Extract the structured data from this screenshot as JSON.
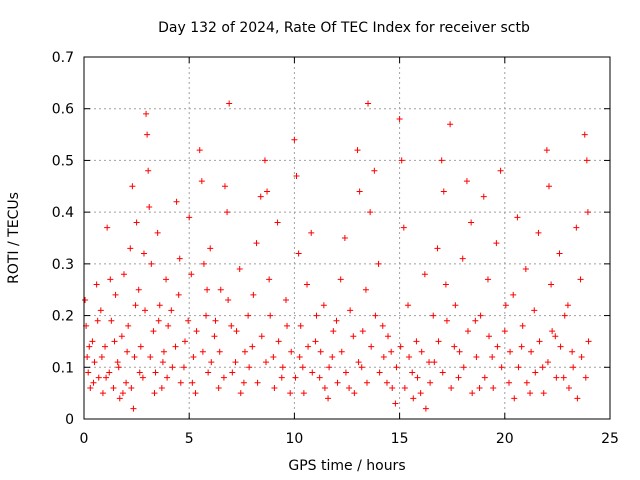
{
  "chart_data": {
    "type": "scatter",
    "title": "Day 132 of 2024, Rate Of TEC Index for receiver sctb",
    "xlabel": "GPS time / hours",
    "ylabel": "ROTI / TECUs",
    "xlim": [
      0,
      25
    ],
    "ylim": [
      0,
      0.7
    ],
    "xticks": [
      "0",
      "5",
      "10",
      "15",
      "20",
      "25"
    ],
    "yticks": [
      "0",
      "0.1",
      "0.2",
      "0.3",
      "0.4",
      "0.5",
      "0.6",
      "0.7"
    ],
    "grid": true,
    "marker": "+",
    "color": "#ff0000",
    "series": [
      {
        "points": [
          [
            0.05,
            0.23
          ],
          [
            0.1,
            0.18
          ],
          [
            0.15,
            0.12
          ],
          [
            0.2,
            0.09
          ],
          [
            0.3,
            0.06
          ],
          [
            0.4,
            0.15
          ],
          [
            0.5,
            0.11
          ],
          [
            0.6,
            0.26
          ],
          [
            0.7,
            0.08
          ],
          [
            0.8,
            0.21
          ],
          [
            0.9,
            0.05
          ],
          [
            1.0,
            0.14
          ],
          [
            1.1,
            0.37
          ],
          [
            1.2,
            0.09
          ],
          [
            1.3,
            0.19
          ],
          [
            1.4,
            0.06
          ],
          [
            1.5,
            0.24
          ],
          [
            1.6,
            0.11
          ],
          [
            1.7,
            0.04
          ],
          [
            1.8,
            0.16
          ],
          [
            1.9,
            0.28
          ],
          [
            2.0,
            0.07
          ],
          [
            2.1,
            0.18
          ],
          [
            2.2,
            0.33
          ],
          [
            2.3,
            0.45
          ],
          [
            2.35,
            0.02
          ],
          [
            2.4,
            0.12
          ],
          [
            2.5,
            0.38
          ],
          [
            2.6,
            0.25
          ],
          [
            2.7,
            0.14
          ],
          [
            2.8,
            0.08
          ],
          [
            2.9,
            0.21
          ],
          [
            2.95,
            0.59
          ],
          [
            3.0,
            0.55
          ],
          [
            3.05,
            0.48
          ],
          [
            3.1,
            0.41
          ],
          [
            3.2,
            0.3
          ],
          [
            3.3,
            0.17
          ],
          [
            3.4,
            0.09
          ],
          [
            3.5,
            0.36
          ],
          [
            3.6,
            0.22
          ],
          [
            3.7,
            0.06
          ],
          [
            3.8,
            0.13
          ],
          [
            3.9,
            0.27
          ],
          [
            4.0,
            0.18
          ],
          [
            4.2,
            0.1
          ],
          [
            4.4,
            0.42
          ],
          [
            4.5,
            0.24
          ],
          [
            4.6,
            0.07
          ],
          [
            4.8,
            0.15
          ],
          [
            5.0,
            0.39
          ],
          [
            5.1,
            0.28
          ],
          [
            5.2,
            0.12
          ],
          [
            5.3,
            0.05
          ],
          [
            5.5,
            0.52
          ],
          [
            5.6,
            0.46
          ],
          [
            5.7,
            0.3
          ],
          [
            5.8,
            0.2
          ],
          [
            5.9,
            0.09
          ],
          [
            6.0,
            0.33
          ],
          [
            6.2,
            0.16
          ],
          [
            6.4,
            0.06
          ],
          [
            6.5,
            0.25
          ],
          [
            6.7,
            0.45
          ],
          [
            6.8,
            0.4
          ],
          [
            6.9,
            0.61
          ],
          [
            7.0,
            0.18
          ],
          [
            7.2,
            0.11
          ],
          [
            7.4,
            0.29
          ],
          [
            7.6,
            0.07
          ],
          [
            7.8,
            0.2
          ],
          [
            8.0,
            0.14
          ],
          [
            8.2,
            0.34
          ],
          [
            8.4,
            0.43
          ],
          [
            8.6,
            0.5
          ],
          [
            8.7,
            0.44
          ],
          [
            8.8,
            0.27
          ],
          [
            9.0,
            0.12
          ],
          [
            9.2,
            0.38
          ],
          [
            9.4,
            0.08
          ],
          [
            9.6,
            0.23
          ],
          [
            9.8,
            0.05
          ],
          [
            10.0,
            0.54
          ],
          [
            10.1,
            0.47
          ],
          [
            10.2,
            0.32
          ],
          [
            10.3,
            0.18
          ],
          [
            10.4,
            0.1
          ],
          [
            10.6,
            0.26
          ],
          [
            10.8,
            0.36
          ],
          [
            11.0,
            0.15
          ],
          [
            11.2,
            0.08
          ],
          [
            11.4,
            0.22
          ],
          [
            11.6,
            0.04
          ],
          [
            11.8,
            0.12
          ],
          [
            12.0,
            0.19
          ],
          [
            12.2,
            0.27
          ],
          [
            12.4,
            0.35
          ],
          [
            12.6,
            0.06
          ],
          [
            12.8,
            0.16
          ],
          [
            13.0,
            0.52
          ],
          [
            13.1,
            0.44
          ],
          [
            13.2,
            0.1
          ],
          [
            13.4,
            0.25
          ],
          [
            13.5,
            0.61
          ],
          [
            13.6,
            0.4
          ],
          [
            13.8,
            0.48
          ],
          [
            14.0,
            0.3
          ],
          [
            14.2,
            0.18
          ],
          [
            14.4,
            0.07
          ],
          [
            14.6,
            0.13
          ],
          [
            14.8,
            0.03
          ],
          [
            15.0,
            0.58
          ],
          [
            15.1,
            0.5
          ],
          [
            15.2,
            0.37
          ],
          [
            15.4,
            0.22
          ],
          [
            15.6,
            0.09
          ],
          [
            15.8,
            0.15
          ],
          [
            16.0,
            0.05
          ],
          [
            16.2,
            0.28
          ],
          [
            16.4,
            0.11
          ],
          [
            16.6,
            0.2
          ],
          [
            16.8,
            0.33
          ],
          [
            17.0,
            0.5
          ],
          [
            17.1,
            0.44
          ],
          [
            17.2,
            0.26
          ],
          [
            17.4,
            0.57
          ],
          [
            17.6,
            0.14
          ],
          [
            17.8,
            0.08
          ],
          [
            18.0,
            0.31
          ],
          [
            18.2,
            0.46
          ],
          [
            18.4,
            0.38
          ],
          [
            18.6,
            0.19
          ],
          [
            18.8,
            0.06
          ],
          [
            19.0,
            0.43
          ],
          [
            19.2,
            0.27
          ],
          [
            19.4,
            0.12
          ],
          [
            19.6,
            0.34
          ],
          [
            19.8,
            0.48
          ],
          [
            20.0,
            0.17
          ],
          [
            20.2,
            0.07
          ],
          [
            20.4,
            0.24
          ],
          [
            20.6,
            0.39
          ],
          [
            20.8,
            0.14
          ],
          [
            21.0,
            0.29
          ],
          [
            21.2,
            0.05
          ],
          [
            21.4,
            0.21
          ],
          [
            21.6,
            0.36
          ],
          [
            21.8,
            0.1
          ],
          [
            22.0,
            0.52
          ],
          [
            22.1,
            0.45
          ],
          [
            22.2,
            0.26
          ],
          [
            22.4,
            0.16
          ],
          [
            22.6,
            0.32
          ],
          [
            22.8,
            0.08
          ],
          [
            23.0,
            0.22
          ],
          [
            23.2,
            0.13
          ],
          [
            23.4,
            0.37
          ],
          [
            23.6,
            0.27
          ],
          [
            23.8,
            0.55
          ],
          [
            23.9,
            0.5
          ],
          [
            23.95,
            0.4
          ],
          [
            0.25,
            0.14
          ],
          [
            0.45,
            0.07
          ],
          [
            0.65,
            0.19
          ],
          [
            0.85,
            0.12
          ],
          [
            1.05,
            0.08
          ],
          [
            1.25,
            0.27
          ],
          [
            1.45,
            0.15
          ],
          [
            1.65,
            0.1
          ],
          [
            1.85,
            0.05
          ],
          [
            2.05,
            0.13
          ],
          [
            2.25,
            0.06
          ],
          [
            2.45,
            0.22
          ],
          [
            2.65,
            0.09
          ],
          [
            2.85,
            0.32
          ],
          [
            3.15,
            0.12
          ],
          [
            3.35,
            0.05
          ],
          [
            3.55,
            0.19
          ],
          [
            3.75,
            0.11
          ],
          [
            3.95,
            0.08
          ],
          [
            4.15,
            0.21
          ],
          [
            4.35,
            0.14
          ],
          [
            4.55,
            0.31
          ],
          [
            4.75,
            0.1
          ],
          [
            4.95,
            0.19
          ],
          [
            5.15,
            0.07
          ],
          [
            5.35,
            0.17
          ],
          [
            5.65,
            0.13
          ],
          [
            5.85,
            0.25
          ],
          [
            6.05,
            0.11
          ],
          [
            6.25,
            0.19
          ],
          [
            6.45,
            0.13
          ],
          [
            6.65,
            0.08
          ],
          [
            6.85,
            0.23
          ],
          [
            7.05,
            0.09
          ],
          [
            7.25,
            0.17
          ],
          [
            7.45,
            0.05
          ],
          [
            7.65,
            0.13
          ],
          [
            7.85,
            0.1
          ],
          [
            8.05,
            0.24
          ],
          [
            8.25,
            0.07
          ],
          [
            8.45,
            0.16
          ],
          [
            8.65,
            0.11
          ],
          [
            8.85,
            0.2
          ],
          [
            9.05,
            0.06
          ],
          [
            9.25,
            0.15
          ],
          [
            9.45,
            0.1
          ],
          [
            9.65,
            0.18
          ],
          [
            9.85,
            0.13
          ],
          [
            10.05,
            0.08
          ],
          [
            10.25,
            0.12
          ],
          [
            10.45,
            0.05
          ],
          [
            10.65,
            0.14
          ],
          [
            10.85,
            0.09
          ],
          [
            11.05,
            0.2
          ],
          [
            11.25,
            0.13
          ],
          [
            11.45,
            0.06
          ],
          [
            11.65,
            0.1
          ],
          [
            11.85,
            0.17
          ],
          [
            12.05,
            0.07
          ],
          [
            12.25,
            0.13
          ],
          [
            12.45,
            0.09
          ],
          [
            12.65,
            0.21
          ],
          [
            12.85,
            0.05
          ],
          [
            13.05,
            0.11
          ],
          [
            13.25,
            0.17
          ],
          [
            13.45,
            0.07
          ],
          [
            13.65,
            0.14
          ],
          [
            13.85,
            0.2
          ],
          [
            14.05,
            0.09
          ],
          [
            14.25,
            0.12
          ],
          [
            14.45,
            0.16
          ],
          [
            14.65,
            0.06
          ],
          [
            14.85,
            0.1
          ],
          [
            15.05,
            0.14
          ],
          [
            15.25,
            0.06
          ],
          [
            15.45,
            0.12
          ],
          [
            15.65,
            0.04
          ],
          [
            15.85,
            0.08
          ],
          [
            16.05,
            0.13
          ],
          [
            16.25,
            0.02
          ],
          [
            16.45,
            0.07
          ],
          [
            16.65,
            0.11
          ],
          [
            16.85,
            0.15
          ],
          [
            17.05,
            0.09
          ],
          [
            17.25,
            0.19
          ],
          [
            17.45,
            0.06
          ],
          [
            17.65,
            0.22
          ],
          [
            17.85,
            0.13
          ],
          [
            18.05,
            0.1
          ],
          [
            18.25,
            0.17
          ],
          [
            18.45,
            0.05
          ],
          [
            18.65,
            0.12
          ],
          [
            18.85,
            0.2
          ],
          [
            19.05,
            0.08
          ],
          [
            19.25,
            0.16
          ],
          [
            19.45,
            0.06
          ],
          [
            19.65,
            0.14
          ],
          [
            19.85,
            0.1
          ],
          [
            20.05,
            0.22
          ],
          [
            20.25,
            0.13
          ],
          [
            20.45,
            0.04
          ],
          [
            20.65,
            0.1
          ],
          [
            20.85,
            0.18
          ],
          [
            21.05,
            0.07
          ],
          [
            21.25,
            0.13
          ],
          [
            21.45,
            0.09
          ],
          [
            21.65,
            0.15
          ],
          [
            21.85,
            0.05
          ],
          [
            22.05,
            0.11
          ],
          [
            22.25,
            0.17
          ],
          [
            22.45,
            0.08
          ],
          [
            22.65,
            0.14
          ],
          [
            22.85,
            0.2
          ],
          [
            23.05,
            0.06
          ],
          [
            23.25,
            0.1
          ],
          [
            23.45,
            0.04
          ],
          [
            23.65,
            0.12
          ],
          [
            23.85,
            0.08
          ],
          [
            23.98,
            0.15
          ]
        ]
      }
    ]
  }
}
